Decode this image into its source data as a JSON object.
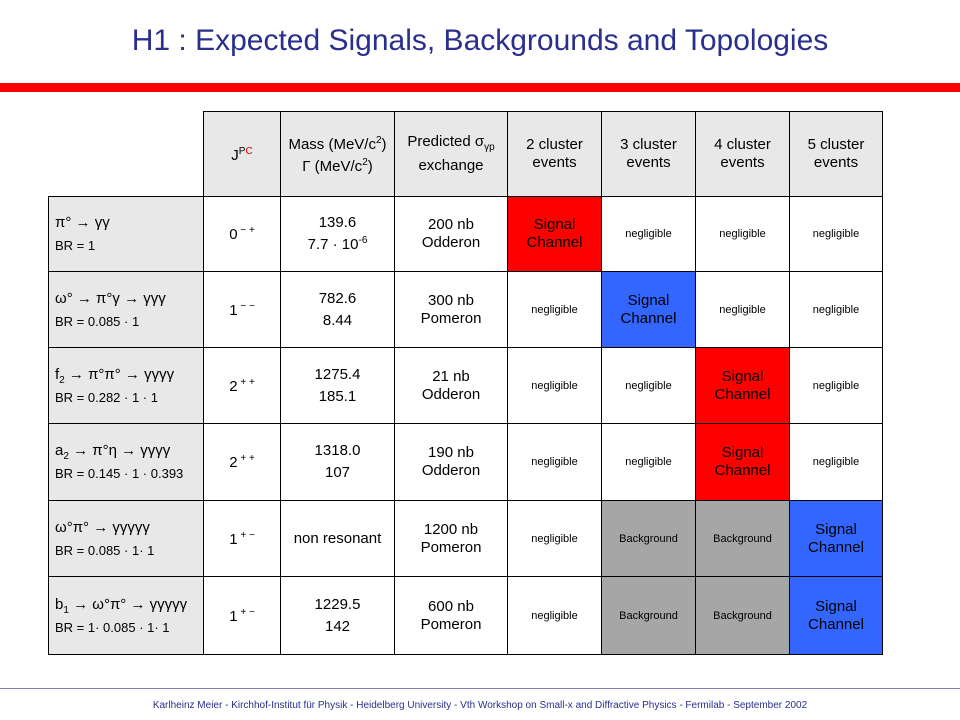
{
  "title": "H1 : Expected Signals, Backgrounds and Topologies",
  "footer": "Karlheinz Meier - Kirchhof-Institut für Physik - Heidelberg University - Vth Workshop on Small-x and Diffractive Physics - Fermilab - September 2002",
  "colors": {
    "title": "#2a2e8c",
    "rule": "#ff0000",
    "signal_red": "#ff0000",
    "signal_blue": "#3366ff",
    "background_gray": "#a6a6a6",
    "header_gray": "#e8e8e8"
  },
  "header": {
    "jpc_j": "J",
    "jpc_p": "P",
    "jpc_c": "C",
    "mass_line1": "Mass (MeV/c",
    "mass_line1_sup": "2",
    "mass_line1_end": ")",
    "mass_line2": "Γ (MeV/c",
    "mass_line2_sup": "2",
    "mass_line2_end": ")",
    "xsec_line1": "Predicted σ",
    "xsec_line1_sub": "γp",
    "xsec_line2": "exchange",
    "c2": "2 cluster events",
    "c3": "3 cluster events",
    "c4": "4 cluster events",
    "c5": "5 cluster events"
  },
  "rows": [
    {
      "decay_a": "π°",
      "decay_a_sub": "",
      "decay_rest": " → γγ",
      "br": "BR = 1",
      "jpc_num": "0",
      "jpc_sign": " − +",
      "mass": "139.6",
      "width_pre": "7.7 · 10",
      "width_exp": "-6",
      "xsec": "200 nb",
      "exchange": "Odderon",
      "c2": "Signal Channel",
      "c3": "negligible",
      "c4": "negligible",
      "c5": "negligible"
    },
    {
      "decay_a": "ω°",
      "decay_a_sub": "",
      "decay_rest": " → π°γ → γγγ",
      "br": "BR = 0.085 · 1",
      "jpc_num": "1",
      "jpc_sign": " − −",
      "mass": "782.6",
      "width_pre": "8.44",
      "width_exp": "",
      "xsec": "300 nb",
      "exchange": "Pomeron",
      "c2": "negligible",
      "c3": "Signal Channel",
      "c4": "negligible",
      "c5": "negligible"
    },
    {
      "decay_a": "f",
      "decay_a_sub": "2",
      "decay_rest": " → π°π° → γγγγ",
      "br": "BR = 0.282 · 1 · 1",
      "jpc_num": "2",
      "jpc_sign": " + +",
      "mass": "1275.4",
      "width_pre": "185.1",
      "width_exp": "",
      "xsec": "21 nb",
      "exchange": "Odderon",
      "c2": "negligible",
      "c3": "negligible",
      "c4": "Signal Channel",
      "c5": "negligible"
    },
    {
      "decay_a": "a",
      "decay_a_sub": "2",
      "decay_rest": " → π°η → γγγγ",
      "br": "BR = 0.145 · 1 · 0.393",
      "jpc_num": "2",
      "jpc_sign": " + +",
      "mass": "1318.0",
      "width_pre": "107",
      "width_exp": "",
      "xsec": "190 nb",
      "exchange": "Odderon",
      "c2": "negligible",
      "c3": "negligible",
      "c4": "Signal Channel",
      "c5": "negligible"
    },
    {
      "decay_a": "ω°π°",
      "decay_a_sub": "",
      "decay_rest": " → γγγγγ",
      "br": "BR = 0.085 · 1· 1",
      "jpc_num": "1",
      "jpc_sign": " + −",
      "mass": "non resonant",
      "width_pre": "",
      "width_exp": "",
      "xsec": "1200 nb",
      "exchange": "Pomeron",
      "c2": "negligible",
      "c3": "Background",
      "c4": "Background",
      "c5": "Signal Channel"
    },
    {
      "decay_a": "b",
      "decay_a_sub": "1",
      "decay_rest": " → ω°π° → γγγγγ",
      "br": "BR = 1· 0.085 · 1· 1",
      "jpc_num": "1",
      "jpc_sign": " + −",
      "mass": "1229.5",
      "width_pre": "142",
      "width_exp": "",
      "xsec": "600 nb",
      "exchange": "Pomeron",
      "c2": "negligible",
      "c3": "Background",
      "c4": "Background",
      "c5": "Signal Channel"
    }
  ]
}
